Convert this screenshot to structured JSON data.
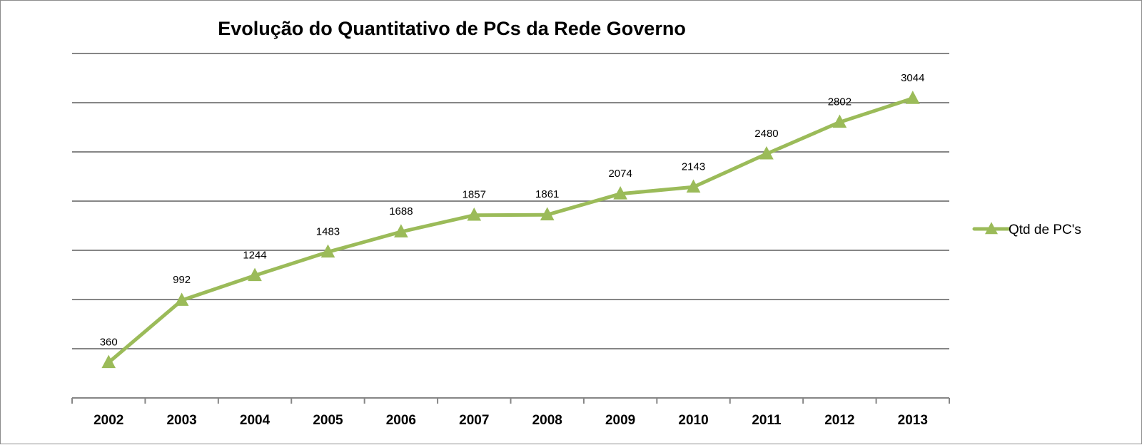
{
  "chart_data": {
    "type": "line",
    "title": "Evolução do Quantitativo de PCs da Rede Governo",
    "xlabel": "",
    "ylabel": "",
    "categories": [
      "2002",
      "2003",
      "2004",
      "2005",
      "2006",
      "2007",
      "2008",
      "2009",
      "2010",
      "2011",
      "2012",
      "2013"
    ],
    "series": [
      {
        "name": "Qtd de PC's",
        "values": [
          360,
          992,
          1244,
          1483,
          1688,
          1857,
          1861,
          2074,
          2143,
          2480,
          2802,
          3044
        ],
        "color": "#9bbb59",
        "marker": "triangle"
      }
    ],
    "ylim": [
      0,
      3500
    ],
    "y_gridline_step": 500,
    "y_tick_labels_shown": false,
    "grid": true,
    "data_labels": true,
    "legend_position": "right"
  },
  "colors": {
    "series": "#9bbb59",
    "gridline": "#868686",
    "axis": "#868686",
    "frame_border": "#8c8c8c"
  }
}
